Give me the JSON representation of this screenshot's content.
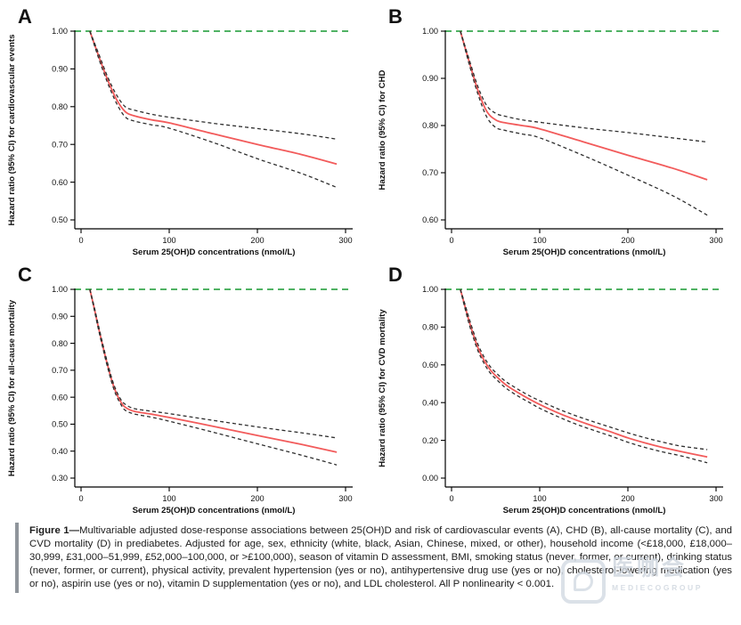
{
  "caption": {
    "figure_label": "Figure 1",
    "dash": "—",
    "text": "Multivariable adjusted dose-response associations between 25(OH)D and risk of cardiovascular events (A), CHD (B), all-cause mortality (C), and CVD mortality (D) in prediabetes. Adjusted for age, sex, ethnicity (white, black, Asian, Chinese, mixed, or other), household income (<£18,000, £18,000–30,999, £31,000–51,999, £52,000–100,000, or >£100,000), season of vitamin D assessment, BMI, smoking status (never, former, or current), drinking status (never, former, or current), physical activity, prevalent hypertension (yes or no), antihypertensive drug use (yes or no), cholesterol-lowering medication (yes or no), aspirin use (yes or no), vitamin D supplementation (yes or no), and LDL cholesterol. All P nonlinearity < 0.001."
  },
  "watermark": {
    "big_text": "医咖会",
    "small_text": "MEDIECOGROUP"
  },
  "colors": {
    "hazard_curve": "#f25b5b",
    "ci_curve": "#2f2f2f",
    "reference_line": "#38a84e",
    "axis": "#000000",
    "caption_bar": "#8f959b"
  },
  "chart_data": [
    {
      "panel_label": "A",
      "type": "line",
      "xlabel": "Serum 25(OH)D concentrations (nmol/L)",
      "ylabel": "Hazard ratio (95% CI) for cardiovascular events",
      "xlim": [
        0,
        300
      ],
      "ylim": [
        0.5,
        1.0
      ],
      "xticks": [
        0,
        100,
        200,
        300
      ],
      "yticks": [
        "1.00",
        "0.90",
        "0.80",
        "0.70",
        "0.60",
        "0.50"
      ],
      "grid": false,
      "legend": "none",
      "reference_line": {
        "y": 1.0,
        "style": "dashed",
        "color": "#38a84e"
      },
      "series": [
        {
          "name": "hazard-ratio",
          "style": "solid",
          "color": "#f25b5b",
          "x": [
            10,
            20,
            30,
            40,
            50,
            60,
            80,
            100,
            150,
            200,
            250,
            290
          ],
          "y": [
            1.0,
            0.934,
            0.872,
            0.82,
            0.787,
            0.776,
            0.765,
            0.757,
            0.728,
            0.7,
            0.673,
            0.648
          ]
        },
        {
          "name": "upper-95ci",
          "style": "dashed",
          "color": "#2f2f2f",
          "x": [
            10,
            20,
            30,
            40,
            50,
            60,
            80,
            100,
            150,
            200,
            250,
            290
          ],
          "y": [
            1.0,
            0.94,
            0.88,
            0.832,
            0.8,
            0.791,
            0.78,
            0.772,
            0.756,
            0.742,
            0.728,
            0.714
          ]
        },
        {
          "name": "lower-95ci",
          "style": "dashed",
          "color": "#2f2f2f",
          "x": [
            10,
            20,
            30,
            40,
            50,
            60,
            80,
            100,
            150,
            200,
            250,
            290
          ],
          "y": [
            1.0,
            0.928,
            0.864,
            0.81,
            0.773,
            0.762,
            0.752,
            0.743,
            0.705,
            0.662,
            0.623,
            0.586
          ]
        }
      ]
    },
    {
      "panel_label": "B",
      "type": "line",
      "xlabel": "Serum 25(OH)D concentrations (nmol/L)",
      "ylabel": "Hazard ratio (95% CI) for CHD",
      "xlim": [
        0,
        300
      ],
      "ylim": [
        0.6,
        1.0
      ],
      "xticks": [
        0,
        100,
        200,
        300
      ],
      "yticks": [
        "1.00",
        "0.90",
        "0.80",
        "0.70",
        "0.60"
      ],
      "grid": false,
      "legend": "none",
      "reference_line": {
        "y": 1.0,
        "style": "dashed",
        "color": "#38a84e"
      },
      "series": [
        {
          "name": "hazard-ratio",
          "style": "solid",
          "color": "#f25b5b",
          "x": [
            10,
            20,
            30,
            40,
            50,
            60,
            80,
            100,
            150,
            200,
            250,
            290
          ],
          "y": [
            1.0,
            0.935,
            0.874,
            0.83,
            0.812,
            0.806,
            0.8,
            0.793,
            0.765,
            0.737,
            0.71,
            0.685
          ]
        },
        {
          "name": "upper-95ci",
          "style": "dashed",
          "color": "#2f2f2f",
          "x": [
            10,
            20,
            30,
            40,
            50,
            60,
            80,
            100,
            150,
            200,
            250,
            290
          ],
          "y": [
            1.0,
            0.94,
            0.882,
            0.842,
            0.826,
            0.82,
            0.812,
            0.807,
            0.795,
            0.785,
            0.774,
            0.765
          ]
        },
        {
          "name": "lower-95ci",
          "style": "dashed",
          "color": "#2f2f2f",
          "x": [
            10,
            20,
            30,
            40,
            50,
            60,
            80,
            100,
            150,
            200,
            250,
            290
          ],
          "y": [
            1.0,
            0.93,
            0.866,
            0.818,
            0.796,
            0.79,
            0.782,
            0.774,
            0.736,
            0.695,
            0.652,
            0.61
          ]
        }
      ]
    },
    {
      "panel_label": "C",
      "type": "line",
      "xlabel": "Serum 25(OH)D concentrations (nmol/L)",
      "ylabel": "Hazard ratio (95% CI) for all-cause mortality",
      "xlim": [
        0,
        300
      ],
      "ylim": [
        0.3,
        1.0
      ],
      "xticks": [
        0,
        100,
        200,
        300
      ],
      "yticks": [
        "1.00",
        "0.90",
        "0.80",
        "0.70",
        "0.60",
        "0.50",
        "0.40",
        "0.30"
      ],
      "grid": false,
      "legend": "none",
      "reference_line": {
        "y": 1.0,
        "style": "dashed",
        "color": "#38a84e"
      },
      "series": [
        {
          "name": "hazard-ratio",
          "style": "solid",
          "color": "#f25b5b",
          "x": [
            10,
            15,
            20,
            25,
            30,
            35,
            40,
            45,
            50,
            60,
            80,
            100,
            150,
            200,
            250,
            290
          ],
          "y": [
            1.0,
            0.93,
            0.855,
            0.785,
            0.72,
            0.66,
            0.615,
            0.583,
            0.563,
            0.548,
            0.537,
            0.525,
            0.492,
            0.458,
            0.425,
            0.396
          ]
        },
        {
          "name": "upper-95ci",
          "style": "dashed",
          "color": "#2f2f2f",
          "x": [
            10,
            15,
            20,
            25,
            30,
            35,
            40,
            45,
            50,
            60,
            80,
            100,
            150,
            200,
            250,
            290
          ],
          "y": [
            1.0,
            0.935,
            0.862,
            0.792,
            0.728,
            0.668,
            0.624,
            0.592,
            0.574,
            0.558,
            0.548,
            0.539,
            0.514,
            0.49,
            0.468,
            0.449
          ]
        },
        {
          "name": "lower-95ci",
          "style": "dashed",
          "color": "#2f2f2f",
          "x": [
            10,
            15,
            20,
            25,
            30,
            35,
            40,
            45,
            50,
            60,
            80,
            100,
            150,
            200,
            250,
            290
          ],
          "y": [
            1.0,
            0.925,
            0.848,
            0.778,
            0.712,
            0.652,
            0.606,
            0.574,
            0.552,
            0.538,
            0.526,
            0.511,
            0.47,
            0.427,
            0.385,
            0.349
          ]
        }
      ]
    },
    {
      "panel_label": "D",
      "type": "line",
      "xlabel": "Serum 25(OH)D concentrations (nmol/L)",
      "ylabel": "Hazard ratio (95% CI) for CVD mortality",
      "xlim": [
        0,
        300
      ],
      "ylim": [
        0.0,
        1.0
      ],
      "xticks": [
        0,
        100,
        200,
        300
      ],
      "yticks": [
        "1.00",
        "0.80",
        "0.60",
        "0.40",
        "0.20",
        "0.00"
      ],
      "grid": false,
      "legend": "none",
      "reference_line": {
        "y": 1.0,
        "style": "dashed",
        "color": "#38a84e"
      },
      "series": [
        {
          "name": "hazard-ratio",
          "style": "solid",
          "color": "#f25b5b",
          "x": [
            10,
            15,
            20,
            25,
            30,
            35,
            40,
            45,
            50,
            60,
            70,
            80,
            90,
            100,
            120,
            140,
            160,
            180,
            200,
            220,
            240,
            260,
            290
          ],
          "y": [
            1.0,
            0.915,
            0.83,
            0.755,
            0.69,
            0.64,
            0.6,
            0.567,
            0.543,
            0.5,
            0.468,
            0.44,
            0.414,
            0.39,
            0.347,
            0.31,
            0.277,
            0.246,
            0.213,
            0.186,
            0.162,
            0.141,
            0.112
          ]
        },
        {
          "name": "upper-95ci",
          "style": "dashed",
          "color": "#2f2f2f",
          "x": [
            10,
            15,
            20,
            25,
            30,
            35,
            40,
            45,
            50,
            60,
            70,
            80,
            90,
            100,
            120,
            140,
            160,
            180,
            200,
            220,
            240,
            260,
            290
          ],
          "y": [
            1.0,
            0.925,
            0.845,
            0.772,
            0.708,
            0.658,
            0.617,
            0.584,
            0.56,
            0.517,
            0.486,
            0.458,
            0.432,
            0.41,
            0.368,
            0.332,
            0.3,
            0.27,
            0.24,
            0.213,
            0.19,
            0.17,
            0.151
          ]
        },
        {
          "name": "lower-95ci",
          "style": "dashed",
          "color": "#2f2f2f",
          "x": [
            10,
            15,
            20,
            25,
            30,
            35,
            40,
            45,
            50,
            60,
            70,
            80,
            90,
            100,
            120,
            140,
            160,
            180,
            200,
            220,
            240,
            260,
            290
          ],
          "y": [
            1.0,
            0.905,
            0.815,
            0.74,
            0.674,
            0.624,
            0.583,
            0.55,
            0.527,
            0.483,
            0.45,
            0.422,
            0.396,
            0.37,
            0.327,
            0.288,
            0.255,
            0.224,
            0.19,
            0.162,
            0.138,
            0.118,
            0.081
          ]
        }
      ]
    }
  ]
}
